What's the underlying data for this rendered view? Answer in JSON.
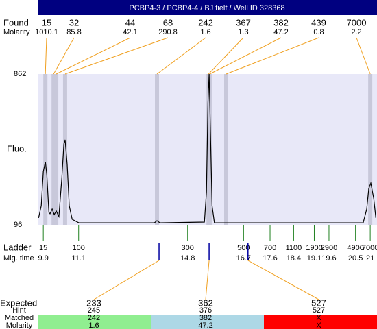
{
  "chart_data": {
    "type": "electropherogram",
    "title": "PCBP4-3 / PCBP4-4 / BJ tielf / Well ID 328368",
    "ylabel": "Fluo.",
    "ylim": [
      96,
      862
    ],
    "yticks": [
      96,
      862
    ],
    "xlim": [
      9.71,
      21.23
    ],
    "trace": {
      "color": "#000000",
      "x": [
        9.74,
        9.83,
        9.9,
        9.97,
        10.02,
        10.09,
        10.13,
        10.2,
        10.27,
        10.34,
        10.43,
        10.53,
        10.6,
        10.64,
        10.71,
        10.78,
        10.88,
        11.11,
        13.67,
        13.76,
        13.86,
        15.37,
        15.44,
        15.49,
        15.53,
        15.58,
        15.63,
        15.71,
        20.76,
        20.88,
        20.95,
        21.02,
        21.12,
        21.19
      ],
      "values": [
        131,
        193,
        367,
        416,
        350,
        159,
        152,
        176,
        148,
        166,
        138,
        333,
        507,
        528,
        402,
        193,
        124,
        106,
        106,
        117,
        106,
        110,
        263,
        715,
        862,
        541,
        193,
        106,
        106,
        176,
        280,
        308,
        228,
        131
      ]
    },
    "found": {
      "label": "Found",
      "molarity_label": "Molarity",
      "sizes": [
        15,
        32,
        44,
        68,
        242,
        367,
        382,
        439,
        7000
      ],
      "molarity": [
        1010.1,
        85.8,
        42.1,
        290.8,
        1.6,
        1.3,
        47.2,
        0.8,
        2.2
      ],
      "mig_time": [
        9.97,
        10.25,
        10.34,
        10.64,
        13.76,
        15.51,
        15.55,
        16.11,
        21.0
      ],
      "color": "#f0a020"
    },
    "ladder": {
      "label": "Ladder",
      "time_label": "Mig. time",
      "sizes": [
        15,
        100,
        300,
        500,
        700,
        1100,
        1900,
        2900,
        4900,
        7000
      ],
      "mig_times": [
        9.9,
        11.1,
        14.8,
        16.7,
        17.6,
        18.4,
        19.1,
        19.6,
        20.5,
        21
      ],
      "color": "#208020"
    },
    "expected": {
      "label": "Expected",
      "hint_label": "Hint",
      "matched_label": "Matched",
      "molarity_label": "Molarity",
      "sizes": [
        233,
        362,
        527
      ],
      "hints": [
        245,
        376,
        527
      ],
      "matched": [
        242,
        382,
        "X"
      ],
      "molarity": [
        1.6,
        47.2,
        "X"
      ],
      "mig_time": [
        13.83,
        15.53,
        16.85
      ],
      "colors": [
        "#90ee90",
        "#add8e6",
        "#ff0000"
      ]
    }
  }
}
